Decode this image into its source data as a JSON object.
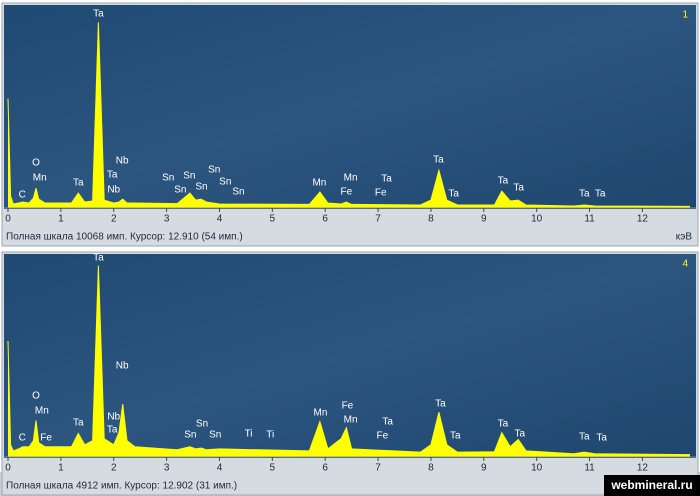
{
  "chart_data": [
    {
      "type": "area",
      "panel_label": "1",
      "x_label": "кэВ",
      "footer": "Полная шкала 10068 имп. Курсор: 12.910 (54 имп.)",
      "color": "#ffff00",
      "xlim": [
        0,
        12.9
      ],
      "ylim": [
        0,
        10068
      ],
      "xticks": [
        0,
        1,
        2,
        3,
        4,
        5,
        6,
        7,
        8,
        9,
        10,
        11,
        12
      ],
      "x": [
        0,
        0.05,
        0.1,
        0.2,
        0.28,
        0.4,
        0.48,
        0.53,
        0.58,
        0.7,
        1.2,
        1.33,
        1.45,
        1.6,
        1.71,
        1.82,
        2.0,
        2.1,
        2.17,
        2.25,
        2.4,
        3.2,
        3.44,
        3.55,
        3.65,
        3.75,
        4.0,
        5.7,
        5.9,
        6.05,
        6.3,
        6.4,
        6.5,
        7.8,
        8.0,
        8.15,
        8.3,
        8.5,
        9.2,
        9.34,
        9.5,
        9.65,
        9.8,
        10.7,
        10.9,
        11.1,
        12.9
      ],
      "values": [
        5500,
        600,
        200,
        250,
        300,
        250,
        500,
        1000,
        450,
        250,
        250,
        750,
        300,
        350,
        9350,
        400,
        250,
        300,
        450,
        250,
        250,
        220,
        750,
        400,
        450,
        300,
        200,
        180,
        800,
        250,
        200,
        300,
        180,
        150,
        400,
        1900,
        400,
        150,
        150,
        850,
        350,
        400,
        150,
        100,
        150,
        100,
        80
      ],
      "annotations": [
        {
          "text": "C",
          "x": 0.27
        },
        {
          "text": "O",
          "x": 0.53
        },
        {
          "text": "Mn",
          "x": 0.6
        },
        {
          "text": "Ta",
          "x": 1.33
        },
        {
          "text": "Ta",
          "x": 1.71
        },
        {
          "text": "Nb",
          "x": 2.16
        },
        {
          "text": "Ta",
          "x": 1.97
        },
        {
          "text": "Nb",
          "x": 2.0
        },
        {
          "text": "Sn",
          "x": 3.03
        },
        {
          "text": "Sn",
          "x": 3.26
        },
        {
          "text": "Sn",
          "x": 3.43
        },
        {
          "text": "Sn",
          "x": 3.66
        },
        {
          "text": "Sn",
          "x": 3.9
        },
        {
          "text": "Sn",
          "x": 4.11
        },
        {
          "text": "Sn",
          "x": 4.36
        },
        {
          "text": "Mn",
          "x": 5.89
        },
        {
          "text": "Fe",
          "x": 6.4
        },
        {
          "text": "Mn",
          "x": 6.48
        },
        {
          "text": "Ta",
          "x": 7.16
        },
        {
          "text": "Fe",
          "x": 7.05
        },
        {
          "text": "Ta",
          "x": 8.14
        },
        {
          "text": "Ta",
          "x": 8.43
        },
        {
          "text": "Ta",
          "x": 9.36
        },
        {
          "text": "Ta",
          "x": 9.66
        },
        {
          "text": "Ta",
          "x": 10.9
        },
        {
          "text": "Ta",
          "x": 11.2
        }
      ]
    },
    {
      "type": "area",
      "panel_label": "4",
      "footer": "Полная шкала 4912 имп. Курсор: 12.902 (31 имп.)",
      "color": "#ffff00",
      "xlim": [
        0,
        12.9
      ],
      "ylim": [
        0,
        4912
      ],
      "xticks": [
        0,
        1,
        2,
        3,
        4,
        5,
        6,
        7,
        8,
        9,
        10,
        11,
        12
      ],
      "x": [
        0,
        0.05,
        0.1,
        0.2,
        0.28,
        0.4,
        0.48,
        0.53,
        0.58,
        0.7,
        1.2,
        1.33,
        1.45,
        1.6,
        1.71,
        1.82,
        2.0,
        2.1,
        2.17,
        2.25,
        2.4,
        3.2,
        3.44,
        3.55,
        3.65,
        3.75,
        4.0,
        5.7,
        5.9,
        6.05,
        6.3,
        6.4,
        6.5,
        7.8,
        8.0,
        8.15,
        8.3,
        8.5,
        9.2,
        9.34,
        9.5,
        9.65,
        9.8,
        10.7,
        10.9,
        11.1,
        12.9
      ],
      "values": [
        2850,
        300,
        150,
        200,
        250,
        250,
        400,
        900,
        350,
        250,
        250,
        580,
        300,
        400,
        4700,
        450,
        300,
        600,
        1300,
        400,
        250,
        180,
        250,
        200,
        220,
        180,
        200,
        150,
        870,
        200,
        450,
        720,
        200,
        120,
        300,
        1100,
        300,
        120,
        130,
        600,
        250,
        430,
        150,
        80,
        120,
        80,
        60
      ],
      "annotations": [
        {
          "text": "C",
          "x": 0.27
        },
        {
          "text": "Fe",
          "x": 0.72
        },
        {
          "text": "O",
          "x": 0.53
        },
        {
          "text": "Mn",
          "x": 0.64
        },
        {
          "text": "Ta",
          "x": 1.33
        },
        {
          "text": "Ta",
          "x": 1.71
        },
        {
          "text": "Nb",
          "x": 2.16
        },
        {
          "text": "Nb",
          "x": 2.0
        },
        {
          "text": "Ta",
          "x": 1.97
        },
        {
          "text": "Sn",
          "x": 3.45
        },
        {
          "text": "Sn",
          "x": 3.67
        },
        {
          "text": "Sn",
          "x": 3.92
        },
        {
          "text": "Ti",
          "x": 4.55
        },
        {
          "text": "Ti",
          "x": 4.96
        },
        {
          "text": "Mn",
          "x": 5.91
        },
        {
          "text": "Fe",
          "x": 6.42
        },
        {
          "text": "Mn",
          "x": 6.48
        },
        {
          "text": "Ta",
          "x": 7.18
        },
        {
          "text": "Fe",
          "x": 7.08
        },
        {
          "text": "Ta",
          "x": 8.18
        },
        {
          "text": "Ta",
          "x": 8.46
        },
        {
          "text": "Ta",
          "x": 9.36
        },
        {
          "text": "Ta",
          "x": 9.68
        },
        {
          "text": "Ta",
          "x": 10.9
        },
        {
          "text": "Ta",
          "x": 11.23
        }
      ]
    }
  ],
  "watermark": "webmineral.ru"
}
